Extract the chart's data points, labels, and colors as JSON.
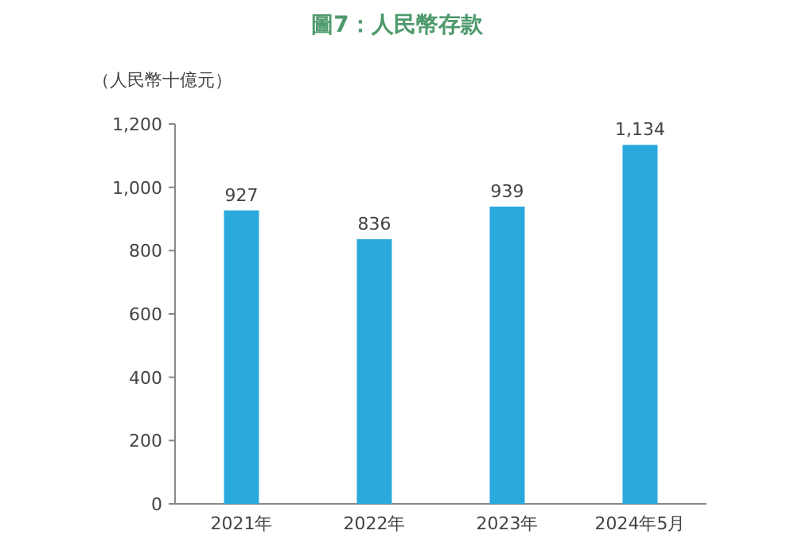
{
  "chart_data": {
    "type": "bar",
    "title": "圖7：人民幣存款",
    "ylabel": "（人民幣十億元）",
    "categories": [
      "2021年",
      "2022年",
      "2023年",
      "2024年5月"
    ],
    "values": [
      927,
      836,
      939,
      1134
    ],
    "value_labels": [
      "927",
      "836",
      "939",
      "1,134"
    ],
    "color": "#2aa9dd",
    "ylim": [
      0,
      1200
    ],
    "yticks": [
      0,
      200,
      400,
      600,
      800,
      {
        "value": 1000,
        "label": "1,000"
      },
      {
        "value": 1200,
        "label": "1,200"
      }
    ],
    "grid": false
  }
}
